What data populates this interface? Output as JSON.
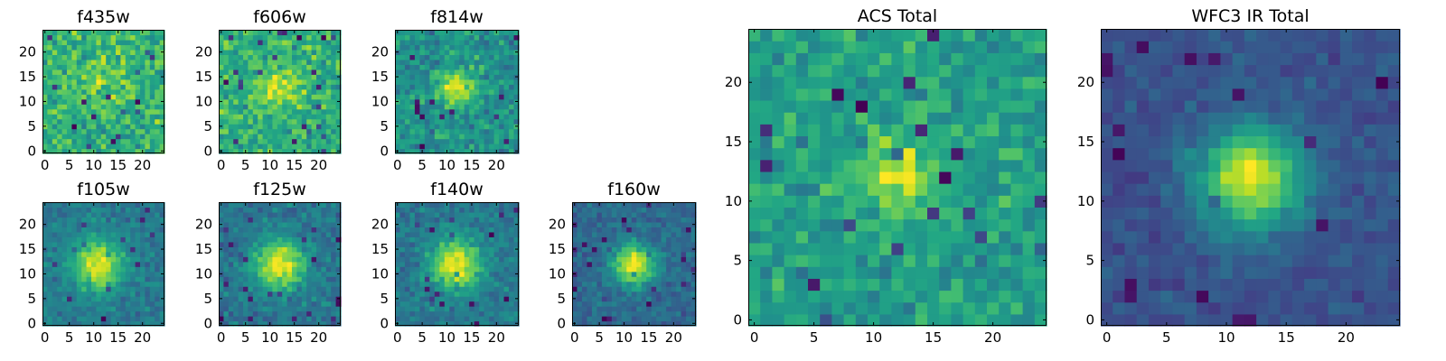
{
  "chart_data": [
    {
      "type": "heatmap",
      "title": "f435w",
      "grid_size": 25,
      "xticks": [
        0,
        5,
        10,
        15,
        20
      ],
      "yticks": [
        0,
        5,
        10,
        15,
        20
      ],
      "xlim": [
        -0.5,
        24.5
      ],
      "ylim": [
        -0.5,
        24.5
      ],
      "peak": [
        12,
        15
      ],
      "sigma": 3,
      "strength": 0.15,
      "noise": 0.55,
      "seed": 11,
      "colormap": "viridis"
    },
    {
      "type": "heatmap",
      "title": "f606w",
      "grid_size": 25,
      "xticks": [
        0,
        5,
        10,
        15,
        20
      ],
      "yticks": [
        0,
        5,
        10,
        15,
        20
      ],
      "xlim": [
        -0.5,
        24.5
      ],
      "ylim": [
        -0.5,
        24.5
      ],
      "peak": [
        12,
        13
      ],
      "sigma": 3,
      "strength": 0.3,
      "noise": 0.55,
      "seed": 23,
      "colormap": "viridis"
    },
    {
      "type": "heatmap",
      "title": "f814w",
      "grid_size": 25,
      "xticks": [
        0,
        5,
        10,
        15,
        20
      ],
      "yticks": [
        0,
        5,
        10,
        15,
        20
      ],
      "xlim": [
        -0.5,
        24.5
      ],
      "ylim": [
        -0.5,
        24.5
      ],
      "peak": [
        12,
        13
      ],
      "sigma": 2.5,
      "strength": 0.45,
      "noise": 0.55,
      "seed": 37,
      "colormap": "viridis"
    },
    {
      "type": "heatmap",
      "title": "f105w",
      "grid_size": 25,
      "xticks": [
        0,
        5,
        10,
        15,
        20
      ],
      "yticks": [
        0,
        5,
        10,
        15,
        20
      ],
      "xlim": [
        -0.5,
        24.5
      ],
      "ylim": [
        -0.5,
        24.5
      ],
      "peak": [
        11,
        12
      ],
      "sigma": 3.5,
      "strength": 0.75,
      "noise": 0.45,
      "seed": 41,
      "colormap": "viridis"
    },
    {
      "type": "heatmap",
      "title": "f125w",
      "grid_size": 25,
      "xticks": [
        0,
        5,
        10,
        15,
        20
      ],
      "yticks": [
        0,
        5,
        10,
        15,
        20
      ],
      "xlim": [
        -0.5,
        24.5
      ],
      "ylim": [
        -0.5,
        24.5
      ],
      "peak": [
        12,
        12
      ],
      "sigma": 3.5,
      "strength": 0.75,
      "noise": 0.45,
      "seed": 53,
      "colormap": "viridis"
    },
    {
      "type": "heatmap",
      "title": "f140w",
      "grid_size": 25,
      "xticks": [
        0,
        5,
        10,
        15,
        20
      ],
      "yticks": [
        0,
        5,
        10,
        15,
        20
      ],
      "xlim": [
        -0.5,
        24.5
      ],
      "ylim": [
        -0.5,
        24.5
      ],
      "peak": [
        12,
        12
      ],
      "sigma": 3.5,
      "strength": 0.75,
      "noise": 0.45,
      "seed": 67,
      "colormap": "viridis"
    },
    {
      "type": "heatmap",
      "title": "f160w",
      "grid_size": 25,
      "xticks": [
        0,
        5,
        10,
        15,
        20
      ],
      "yticks": [
        0,
        5,
        10,
        15,
        20
      ],
      "xlim": [
        -0.5,
        24.5
      ],
      "ylim": [
        -0.5,
        24.5
      ],
      "peak": [
        12,
        12
      ],
      "sigma": 2.8,
      "strength": 0.85,
      "noise": 0.4,
      "seed": 79,
      "colormap": "viridis"
    },
    {
      "type": "heatmap",
      "title": "ACS Total",
      "grid_size": 25,
      "xticks": [
        0,
        5,
        10,
        15,
        20
      ],
      "yticks": [
        0,
        5,
        10,
        15,
        20
      ],
      "xlim": [
        -0.5,
        24.5
      ],
      "ylim": [
        -0.5,
        24.5
      ],
      "peak": [
        12,
        12
      ],
      "sigma": 2.5,
      "strength": 0.4,
      "noise": 0.55,
      "seed": 97,
      "colormap": "viridis"
    },
    {
      "type": "heatmap",
      "title": "WFC3 IR Total",
      "grid_size": 25,
      "xticks": [
        0,
        5,
        10,
        15,
        20
      ],
      "yticks": [
        0,
        5,
        10,
        15,
        20
      ],
      "xlim": [
        -0.5,
        24.5
      ],
      "ylim": [
        -0.5,
        24.5
      ],
      "peak": [
        12,
        12
      ],
      "sigma": 3,
      "strength": 0.9,
      "noise": 0.3,
      "seed": 131,
      "colormap": "viridis"
    }
  ]
}
